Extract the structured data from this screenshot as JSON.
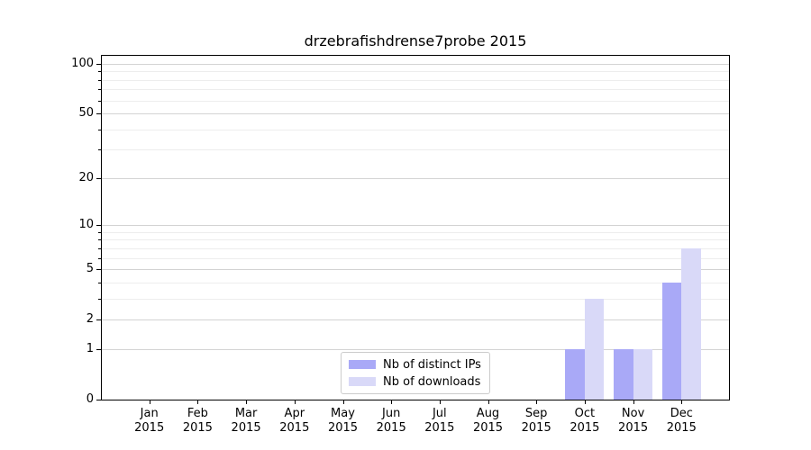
{
  "page": {
    "background": "#ffffff"
  },
  "chart_data": {
    "type": "bar",
    "title": "drzebrafishdrense7probe 2015",
    "categories": [
      "Jan",
      "Feb",
      "Mar",
      "Apr",
      "May",
      "Jun",
      "Jul",
      "Aug",
      "Sep",
      "Oct",
      "Nov",
      "Dec"
    ],
    "x_year": "2015",
    "series": [
      {
        "name": "Nb of distinct IPs",
        "color": "#a9a9f7",
        "values": [
          0,
          0,
          0,
          0,
          0,
          0,
          0,
          0,
          0,
          1,
          1,
          4
        ]
      },
      {
        "name": "Nb of downloads",
        "color": "#d9d9f8",
        "values": [
          0,
          0,
          0,
          0,
          0,
          0,
          0,
          0,
          0,
          3,
          1,
          7
        ]
      }
    ],
    "yscale": "log1p",
    "ylim": [
      0,
      113
    ],
    "yticks_major": [
      0,
      1,
      2,
      5,
      10,
      20,
      50,
      100
    ],
    "yticks_minor": [
      3,
      4,
      6,
      7,
      8,
      9,
      30,
      40,
      60,
      70,
      80,
      90
    ],
    "grid": true,
    "legend_position": "lower center",
    "colors": {
      "axis": "#000000",
      "grid_major": "#d3d3d3",
      "grid_minor": "#ededed",
      "legend_border": "#cccccc",
      "text": "#000000"
    }
  }
}
